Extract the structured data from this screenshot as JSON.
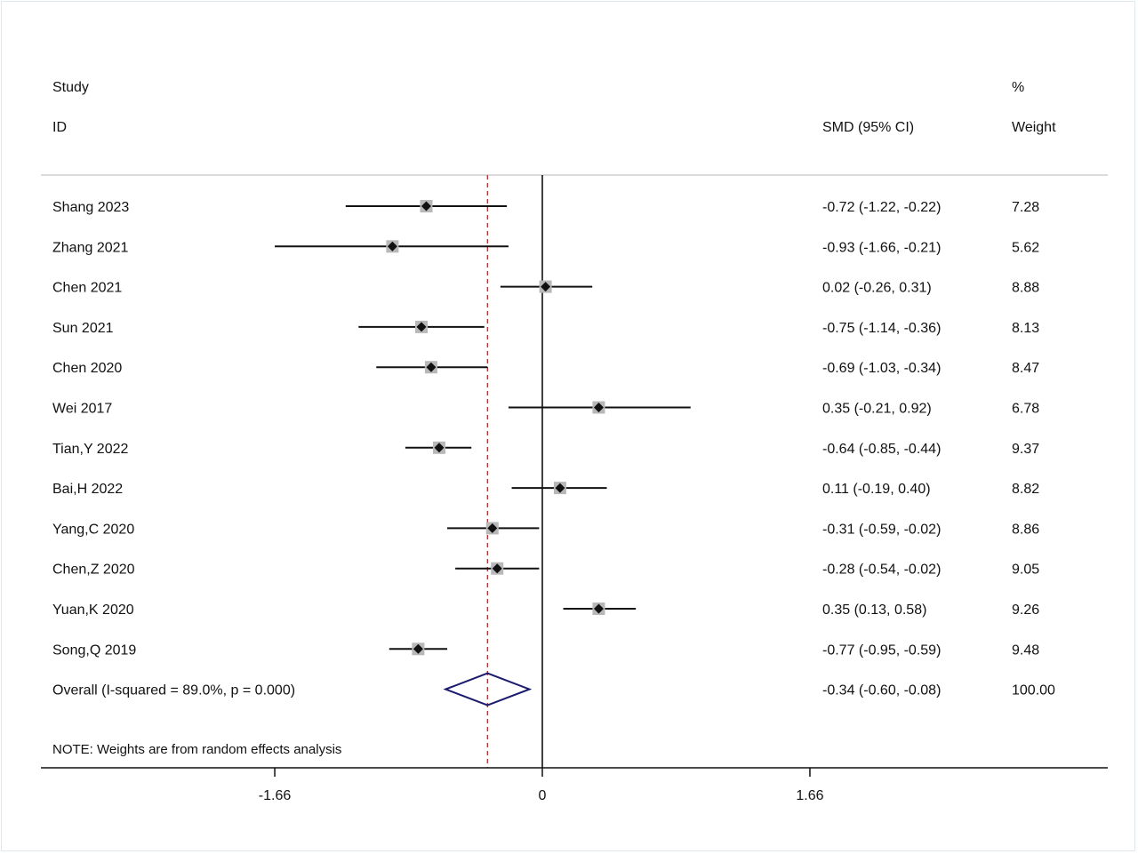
{
  "header": {
    "study_label": "Study",
    "id_label": "ID",
    "smd_label": "SMD (95% CI)",
    "percent_label": "%",
    "weight_label": "Weight"
  },
  "note": "NOTE: Weights are from random effects analysis",
  "chart_data": {
    "type": "forest",
    "measure": "SMD",
    "x_ticks": [
      {
        "value": -1.66,
        "label": "-1.66"
      },
      {
        "value": 0,
        "label": "0"
      },
      {
        "value": 1.66,
        "label": "1.66"
      }
    ],
    "studies": [
      {
        "id": "Shang 2023",
        "est": -0.72,
        "lo": -1.22,
        "hi": -0.22,
        "ci_text": "-0.72 (-1.22, -0.22)",
        "weight": "7.28"
      },
      {
        "id": "Zhang 2021",
        "est": -0.93,
        "lo": -1.66,
        "hi": -0.21,
        "ci_text": "-0.93 (-1.66, -0.21)",
        "weight": "5.62"
      },
      {
        "id": "Chen 2021",
        "est": 0.02,
        "lo": -0.26,
        "hi": 0.31,
        "ci_text": "0.02 (-0.26, 0.31)",
        "weight": "8.88"
      },
      {
        "id": "Sun 2021",
        "est": -0.75,
        "lo": -1.14,
        "hi": -0.36,
        "ci_text": "-0.75 (-1.14, -0.36)",
        "weight": "8.13"
      },
      {
        "id": "Chen 2020",
        "est": -0.69,
        "lo": -1.03,
        "hi": -0.34,
        "ci_text": "-0.69 (-1.03, -0.34)",
        "weight": "8.47"
      },
      {
        "id": "Wei 2017",
        "est": 0.35,
        "lo": -0.21,
        "hi": 0.92,
        "ci_text": "0.35 (-0.21, 0.92)",
        "weight": "6.78"
      },
      {
        "id": "Tian,Y 2022",
        "est": -0.64,
        "lo": -0.85,
        "hi": -0.44,
        "ci_text": "-0.64 (-0.85, -0.44)",
        "weight": "9.37"
      },
      {
        "id": "Bai,H 2022",
        "est": 0.11,
        "lo": -0.19,
        "hi": 0.4,
        "ci_text": "0.11 (-0.19, 0.40)",
        "weight": "8.82"
      },
      {
        "id": "Yang,C 2020",
        "est": -0.31,
        "lo": -0.59,
        "hi": -0.02,
        "ci_text": "-0.31 (-0.59, -0.02)",
        "weight": "8.86"
      },
      {
        "id": "Chen,Z 2020",
        "est": -0.28,
        "lo": -0.54,
        "hi": -0.02,
        "ci_text": "-0.28 (-0.54, -0.02)",
        "weight": "9.05"
      },
      {
        "id": "Yuan,K 2020",
        "est": 0.35,
        "lo": 0.13,
        "hi": 0.58,
        "ci_text": "0.35 (0.13, 0.58)",
        "weight": "9.26"
      },
      {
        "id": "Song,Q 2019",
        "est": -0.77,
        "lo": -0.95,
        "hi": -0.59,
        "ci_text": "-0.77 (-0.95, -0.59)",
        "weight": "9.48"
      }
    ],
    "overall": {
      "label": "Overall  (I-squared = 89.0%, p = 0.000)",
      "est": -0.34,
      "lo": -0.6,
      "hi": -0.08,
      "ci_text": "-0.34 (-0.60, -0.08)",
      "weight": "100.00"
    },
    "colors": {
      "ci_line": "#111111",
      "marker": "#111111",
      "weight_box": "#b8b8b8",
      "null_line": "#111111",
      "overall_line": "#b03a3a",
      "diamond": "#1a1a6e"
    }
  }
}
